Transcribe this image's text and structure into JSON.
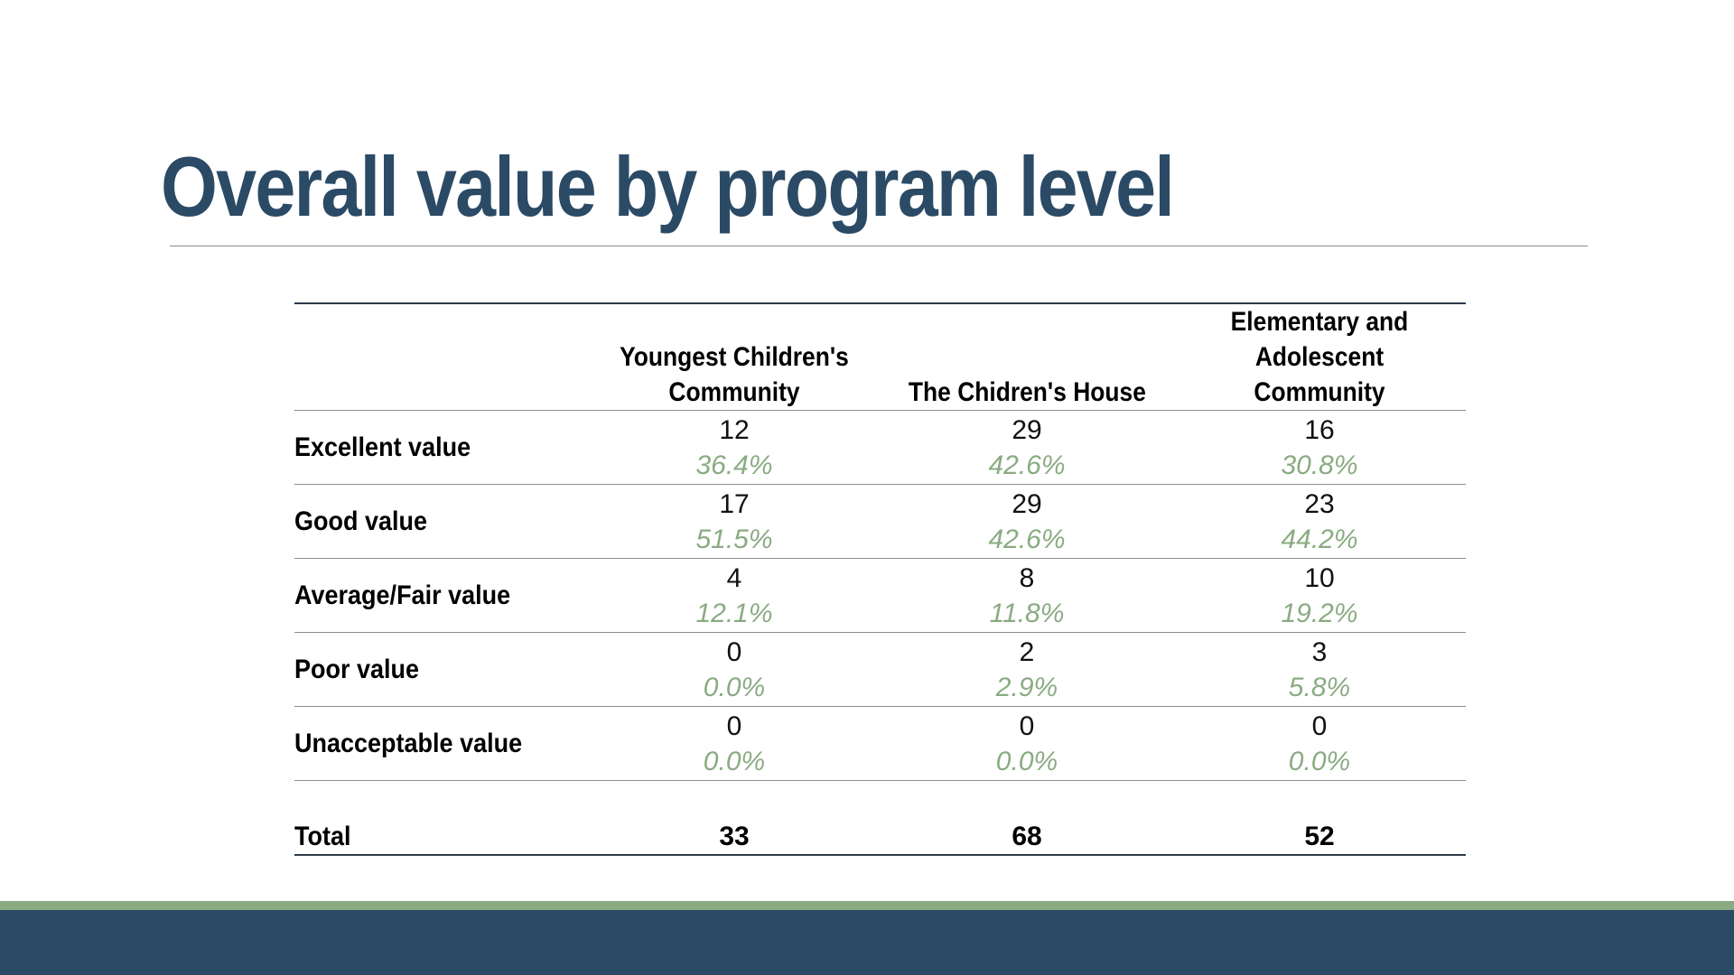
{
  "slide": {
    "title": "Overall value by program level",
    "colors": {
      "title": "#2b4a65",
      "percent": "#8aab82",
      "footer_bar": "#2b4a65",
      "footer_accent": "#8aab82"
    }
  },
  "table": {
    "columns": [
      "Youngest Children's Community",
      "The Chidren's House",
      "Elementary and Adolescent Community"
    ],
    "rows": [
      {
        "label": "Excellent value",
        "cells": [
          {
            "count": "12",
            "pct": "36.4%"
          },
          {
            "count": "29",
            "pct": "42.6%"
          },
          {
            "count": "16",
            "pct": "30.8%"
          }
        ]
      },
      {
        "label": "Good value",
        "cells": [
          {
            "count": "17",
            "pct": "51.5%"
          },
          {
            "count": "29",
            "pct": "42.6%"
          },
          {
            "count": "23",
            "pct": "44.2%"
          }
        ]
      },
      {
        "label": "Average/Fair value",
        "cells": [
          {
            "count": "4",
            "pct": "12.1%"
          },
          {
            "count": "8",
            "pct": "11.8%"
          },
          {
            "count": "10",
            "pct": "19.2%"
          }
        ]
      },
      {
        "label": "Poor value",
        "cells": [
          {
            "count": "0",
            "pct": "0.0%"
          },
          {
            "count": "2",
            "pct": "2.9%"
          },
          {
            "count": "3",
            "pct": "5.8%"
          }
        ]
      },
      {
        "label": "Unacceptable value",
        "cells": [
          {
            "count": "0",
            "pct": "0.0%"
          },
          {
            "count": "0",
            "pct": "0.0%"
          },
          {
            "count": "0",
            "pct": "0.0%"
          }
        ]
      }
    ],
    "total": {
      "label": "Total",
      "values": [
        "33",
        "68",
        "52"
      ]
    }
  }
}
